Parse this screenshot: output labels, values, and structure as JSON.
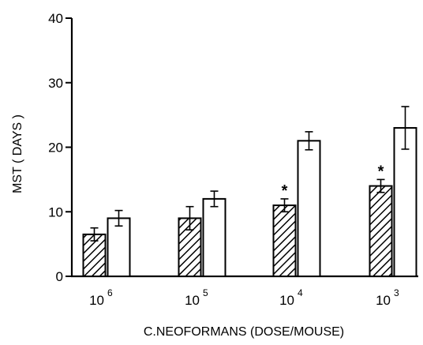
{
  "chart_data": {
    "type": "bar",
    "title": "",
    "xlabel": "C.NEOFORMANS (DOSE/MOUSE)",
    "ylabel": "MST ( DAYS )",
    "ylim": [
      0,
      40
    ],
    "yticks": [
      0,
      10,
      20,
      30,
      40
    ],
    "categories": [
      {
        "base": "10",
        "exp": "6"
      },
      {
        "base": "10",
        "exp": "5"
      },
      {
        "base": "10",
        "exp": "4"
      },
      {
        "base": "10",
        "exp": "3"
      }
    ],
    "series": [
      {
        "pattern": "hatched",
        "values": [
          6.5,
          9.0,
          11.0,
          14.0
        ],
        "errors": [
          1.0,
          1.8,
          1.0,
          1.0
        ],
        "significant": [
          false,
          false,
          true,
          true
        ]
      },
      {
        "pattern": "open",
        "values": [
          9.0,
          12.0,
          21.0,
          23.0
        ],
        "errors": [
          1.2,
          1.2,
          1.4,
          3.3
        ],
        "significant": [
          false,
          false,
          false,
          false
        ]
      }
    ],
    "significance_marker": "*",
    "grid": false,
    "legend": "none"
  }
}
